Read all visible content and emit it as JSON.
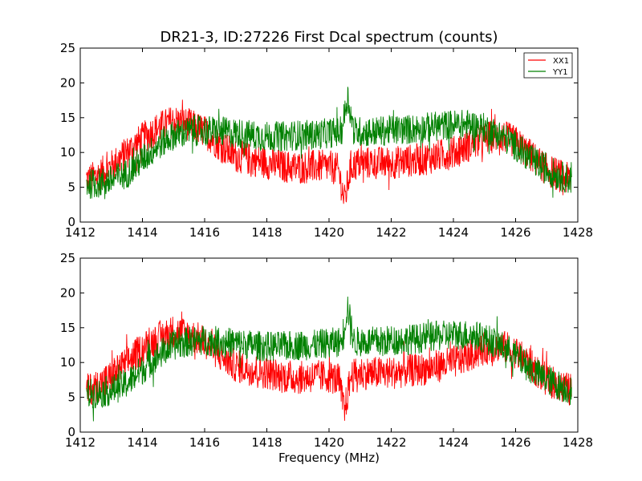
{
  "chart_data": {
    "type": "line",
    "title": "DR21-3, ID:27226 First Dcal spectrum (counts)",
    "xlabel": "Frequency (MHz)",
    "ylabel": "",
    "xlim": [
      1412,
      1428
    ],
    "ylim": [
      0,
      25
    ],
    "xticks": [
      "1412",
      "1414",
      "1416",
      "1418",
      "1420",
      "1422",
      "1424",
      "1426",
      "1428"
    ],
    "yticks": [
      "0",
      "5",
      "10",
      "15",
      "20",
      "25"
    ],
    "legend": {
      "placement": "top-right",
      "entries": [
        "XX1",
        "YY1"
      ]
    },
    "grid": false,
    "panels": [
      {
        "series": [
          {
            "name": "XX1",
            "color": "#ff0000",
            "x": [
              1412.2,
              1412.5,
              1413.0,
              1413.5,
              1414.0,
              1414.5,
              1415.0,
              1415.5,
              1416.0,
              1416.5,
              1417.0,
              1417.5,
              1418.0,
              1418.5,
              1419.0,
              1419.5,
              1420.0,
              1420.3,
              1420.5,
              1420.7,
              1421.0,
              1421.5,
              1422.0,
              1422.5,
              1423.0,
              1423.5,
              1424.0,
              1424.5,
              1425.0,
              1425.5,
              1426.0,
              1426.5,
              1427.0,
              1427.5,
              1427.8
            ],
            "y": [
              6,
              6.5,
              8,
              10,
              12,
              13.5,
              14.5,
              14,
              13,
              11,
              9.5,
              9,
              8.5,
              8,
              7.8,
              8,
              8,
              7.5,
              3,
              8,
              8.5,
              8.5,
              8.5,
              8.8,
              9,
              9.5,
              10,
              11,
              12,
              12.5,
              11.5,
              9.5,
              7.5,
              6.5,
              6
            ]
          },
          {
            "name": "YY1",
            "color": "#008000",
            "x": [
              1412.2,
              1412.5,
              1413.0,
              1413.5,
              1414.0,
              1414.5,
              1415.0,
              1415.5,
              1416.0,
              1416.5,
              1417.0,
              1417.5,
              1418.0,
              1418.5,
              1419.0,
              1419.5,
              1420.0,
              1420.4,
              1420.6,
              1420.8,
              1421.0,
              1421.5,
              1422.0,
              1422.5,
              1423.0,
              1423.5,
              1424.0,
              1424.5,
              1425.0,
              1425.5,
              1426.0,
              1426.5,
              1427.0,
              1427.5,
              1427.8
            ],
            "y": [
              5.5,
              5.5,
              6,
              7,
              9,
              11,
              12.5,
              13,
              13.2,
              13,
              12.8,
              12.5,
              12.3,
              12.3,
              12.5,
              12.5,
              12.8,
              13,
              18,
              13,
              13,
              13,
              13.2,
              13.3,
              13.5,
              13.8,
              14,
              14,
              13.5,
              12.5,
              11,
              9,
              7.5,
              6.5,
              6
            ]
          }
        ]
      },
      {
        "series": [
          {
            "name": "XX1",
            "color": "#ff0000",
            "x": [
              1412.2,
              1412.5,
              1413.0,
              1413.5,
              1414.0,
              1414.5,
              1415.0,
              1415.5,
              1416.0,
              1416.5,
              1417.0,
              1417.5,
              1418.0,
              1418.5,
              1419.0,
              1419.5,
              1420.0,
              1420.3,
              1420.5,
              1420.7,
              1421.0,
              1421.5,
              1422.0,
              1422.5,
              1423.0,
              1423.5,
              1424.0,
              1424.5,
              1425.0,
              1425.5,
              1426.0,
              1426.5,
              1427.0,
              1427.5,
              1427.8
            ],
            "y": [
              6,
              6.5,
              8,
              10,
              12,
              13.5,
              14.5,
              14,
              13,
              11,
              9.5,
              9,
              8.5,
              8,
              7.8,
              8,
              8,
              7.5,
              3,
              8,
              8.5,
              8.5,
              8.5,
              8.8,
              9,
              9.5,
              10,
              11,
              12,
              12.5,
              11.5,
              9.5,
              7.5,
              6.5,
              6
            ]
          },
          {
            "name": "YY1",
            "color": "#008000",
            "x": [
              1412.2,
              1412.5,
              1413.0,
              1413.5,
              1414.0,
              1414.5,
              1415.0,
              1415.5,
              1416.0,
              1416.5,
              1417.0,
              1417.5,
              1418.0,
              1418.5,
              1419.0,
              1419.5,
              1420.0,
              1420.4,
              1420.6,
              1420.8,
              1421.0,
              1421.5,
              1422.0,
              1422.5,
              1423.0,
              1423.5,
              1424.0,
              1424.5,
              1425.0,
              1425.5,
              1426.0,
              1426.5,
              1427.0,
              1427.5,
              1427.8
            ],
            "y": [
              5.5,
              5.5,
              6,
              7,
              9,
              11,
              12.5,
              13,
              13.2,
              13,
              12.8,
              12.5,
              12.3,
              12.3,
              12.5,
              12.5,
              12.8,
              13,
              18,
              13,
              13,
              13,
              13.2,
              13.3,
              13.5,
              13.8,
              14,
              14,
              13.5,
              12.5,
              11,
              9,
              7.5,
              6.5,
              6
            ]
          }
        ]
      }
    ]
  }
}
